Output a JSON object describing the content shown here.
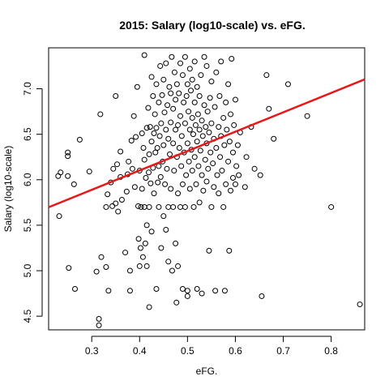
{
  "chart_data": {
    "type": "scatter",
    "title": "2015: Salary (log10-scale) vs. eFG.",
    "xlabel": "eFG.",
    "ylabel": "Salary (log10-scale)",
    "xlim": [
      0.21,
      0.87
    ],
    "ylim": [
      4.35,
      7.45
    ],
    "x_ticks": [
      0.3,
      0.4,
      0.5,
      0.6,
      0.7,
      0.8
    ],
    "x_tick_labels": [
      "0.3",
      "0.4",
      "0.5",
      "0.6",
      "0.7",
      "0.8"
    ],
    "y_ticks": [
      4.5,
      5.0,
      5.5,
      6.0,
      6.5,
      7.0
    ],
    "y_tick_labels": [
      "4.5",
      "5.0",
      "5.5",
      "6.0",
      "6.5",
      "7.0"
    ],
    "grid": false,
    "point_color": "#000000",
    "fit_color": "#e41a1c",
    "fit_line": {
      "intercept": 5.25,
      "slope": 2.13,
      "x_range": [
        0.21,
        0.87
      ]
    },
    "points": [
      [
        0.23,
        6.04
      ],
      [
        0.235,
        6.08
      ],
      [
        0.232,
        5.6
      ],
      [
        0.25,
        6.26
      ],
      [
        0.25,
        6.3
      ],
      [
        0.25,
        6.04
      ],
      [
        0.252,
        5.03
      ],
      [
        0.263,
        5.95
      ],
      [
        0.265,
        4.8
      ],
      [
        0.275,
        6.44
      ],
      [
        0.295,
        6.09
      ],
      [
        0.31,
        4.99
      ],
      [
        0.315,
        4.47
      ],
      [
        0.315,
        4.4
      ],
      [
        0.318,
        6.72
      ],
      [
        0.32,
        5.15
      ],
      [
        0.33,
        5.04
      ],
      [
        0.33,
        5.7
      ],
      [
        0.333,
        5.84
      ],
      [
        0.335,
        4.78
      ],
      [
        0.34,
        5.97
      ],
      [
        0.343,
        5.71
      ],
      [
        0.345,
        6.12
      ],
      [
        0.35,
        5.74
      ],
      [
        0.35,
        6.92
      ],
      [
        0.353,
        6.17
      ],
      [
        0.355,
        5.65
      ],
      [
        0.36,
        6.31
      ],
      [
        0.36,
        6.03
      ],
      [
        0.363,
        5.78
      ],
      [
        0.37,
        5.2
      ],
      [
        0.373,
        5.87
      ],
      [
        0.375,
        6.06
      ],
      [
        0.377,
        6.2
      ],
      [
        0.38,
        4.78
      ],
      [
        0.38,
        5.0
      ],
      [
        0.383,
        6.43
      ],
      [
        0.385,
        6.12
      ],
      [
        0.388,
        6.7
      ],
      [
        0.39,
        5.92
      ],
      [
        0.392,
        6.47
      ],
      [
        0.395,
        7.02
      ],
      [
        0.397,
        5.71
      ],
      [
        0.398,
        5.35
      ],
      [
        0.4,
        6.1
      ],
      [
        0.4,
        5.05
      ],
      [
        0.402,
        5.25
      ],
      [
        0.403,
        5.7
      ],
      [
        0.405,
        6.51
      ],
      [
        0.405,
        5.9
      ],
      [
        0.407,
        5.15
      ],
      [
        0.408,
        6.35
      ],
      [
        0.41,
        7.37
      ],
      [
        0.41,
        5.7
      ],
      [
        0.41,
        6.22
      ],
      [
        0.412,
        5.3
      ],
      [
        0.413,
        6.02
      ],
      [
        0.415,
        6.57
      ],
      [
        0.415,
        5.05
      ],
      [
        0.415,
        5.5
      ],
      [
        0.418,
        6.79
      ],
      [
        0.419,
        6.08
      ],
      [
        0.42,
        6.28
      ],
      [
        0.42,
        5.7
      ],
      [
        0.42,
        4.6
      ],
      [
        0.422,
        6.58
      ],
      [
        0.423,
        5.96
      ],
      [
        0.425,
        7.13
      ],
      [
        0.425,
        6.42
      ],
      [
        0.425,
        5.43
      ],
      [
        0.428,
        6.92
      ],
      [
        0.428,
        6.13
      ],
      [
        0.43,
        6.51
      ],
      [
        0.43,
        5.85
      ],
      [
        0.432,
        6.72
      ],
      [
        0.433,
        6.3
      ],
      [
        0.435,
        7.05
      ],
      [
        0.435,
        6.57
      ],
      [
        0.435,
        4.8
      ],
      [
        0.437,
        6.35
      ],
      [
        0.438,
        5.97
      ],
      [
        0.44,
        6.15
      ],
      [
        0.44,
        6.85
      ],
      [
        0.44,
        5.7
      ],
      [
        0.442,
        6.48
      ],
      [
        0.443,
        7.25
      ],
      [
        0.444,
        6.03
      ],
      [
        0.445,
        6.62
      ],
      [
        0.445,
        5.25
      ],
      [
        0.447,
        6.93
      ],
      [
        0.448,
        6.2
      ],
      [
        0.45,
        7.1
      ],
      [
        0.45,
        5.6
      ],
      [
        0.45,
        6.38
      ],
      [
        0.452,
        6.74
      ],
      [
        0.453,
        5.95
      ],
      [
        0.455,
        6.55
      ],
      [
        0.455,
        5.45
      ],
      [
        0.455,
        7.28
      ],
      [
        0.457,
        6.12
      ],
      [
        0.458,
        6.82
      ],
      [
        0.46,
        6.45
      ],
      [
        0.46,
        5.7
      ],
      [
        0.46,
        5.1
      ],
      [
        0.462,
        7.02
      ],
      [
        0.463,
        6.28
      ],
      [
        0.465,
        6.63
      ],
      [
        0.465,
        5.9
      ],
      [
        0.465,
        6.95
      ],
      [
        0.467,
        7.35
      ],
      [
        0.468,
        5.0
      ],
      [
        0.47,
        6.4
      ],
      [
        0.47,
        6.78
      ],
      [
        0.47,
        5.7
      ],
      [
        0.472,
        6.1
      ],
      [
        0.473,
        7.18
      ],
      [
        0.475,
        6.55
      ],
      [
        0.475,
        5.3
      ],
      [
        0.475,
        6.88
      ],
      [
        0.477,
        4.65
      ],
      [
        0.478,
        6.25
      ],
      [
        0.478,
        7.05
      ],
      [
        0.48,
        5.85
      ],
      [
        0.48,
        6.6
      ],
      [
        0.48,
        5.05
      ],
      [
        0.482,
        6.95
      ],
      [
        0.483,
        6.35
      ],
      [
        0.485,
        7.28
      ],
      [
        0.485,
        5.7
      ],
      [
        0.485,
        6.7
      ],
      [
        0.487,
        6.15
      ],
      [
        0.488,
        6.48
      ],
      [
        0.49,
        7.15
      ],
      [
        0.49,
        5.95
      ],
      [
        0.49,
        4.8
      ],
      [
        0.492,
        6.85
      ],
      [
        0.493,
        6.3
      ],
      [
        0.495,
        6.62
      ],
      [
        0.495,
        7.35
      ],
      [
        0.495,
        5.7
      ],
      [
        0.497,
        6.05
      ],
      [
        0.498,
        6.92
      ],
      [
        0.5,
        6.4
      ],
      [
        0.5,
        7.05
      ],
      [
        0.5,
        4.78
      ],
      [
        0.5,
        4.72
      ],
      [
        0.502,
        6.75
      ],
      [
        0.503,
        6.2
      ],
      [
        0.505,
        6.55
      ],
      [
        0.505,
        5.9
      ],
      [
        0.505,
        7.22
      ],
      [
        0.507,
        6.98
      ],
      [
        0.508,
        6.33
      ],
      [
        0.51,
        6.68
      ],
      [
        0.51,
        6.1
      ],
      [
        0.51,
        7.1
      ],
      [
        0.512,
        6.5
      ],
      [
        0.513,
        5.7
      ],
      [
        0.515,
        6.85
      ],
      [
        0.515,
        6.25
      ],
      [
        0.515,
        7.3
      ],
      [
        0.517,
        6.6
      ],
      [
        0.518,
        5.95
      ],
      [
        0.52,
        6.42
      ],
      [
        0.52,
        7.02
      ],
      [
        0.52,
        4.8
      ],
      [
        0.522,
        6.72
      ],
      [
        0.523,
        6.15
      ],
      [
        0.525,
        6.55
      ],
      [
        0.525,
        5.75
      ],
      [
        0.525,
        6.92
      ],
      [
        0.527,
        6.32
      ],
      [
        0.528,
        7.15
      ],
      [
        0.53,
        6.05
      ],
      [
        0.53,
        6.65
      ],
      [
        0.53,
        4.75
      ],
      [
        0.532,
        6.48
      ],
      [
        0.533,
        5.88
      ],
      [
        0.535,
        6.82
      ],
      [
        0.535,
        7.35
      ],
      [
        0.537,
        6.22
      ],
      [
        0.538,
        6.58
      ],
      [
        0.54,
        5.98
      ],
      [
        0.54,
        6.4
      ],
      [
        0.54,
        7.25
      ],
      [
        0.542,
        6.75
      ],
      [
        0.543,
        6.12
      ],
      [
        0.545,
        6.52
      ],
      [
        0.545,
        5.22
      ],
      [
        0.547,
        6.9
      ],
      [
        0.548,
        6.3
      ],
      [
        0.55,
        5.7
      ],
      [
        0.55,
        6.62
      ],
      [
        0.55,
        7.08
      ],
      [
        0.553,
        6.18
      ],
      [
        0.555,
        6.45
      ],
      [
        0.555,
        5.92
      ],
      [
        0.557,
        6.8
      ],
      [
        0.558,
        4.78
      ],
      [
        0.56,
        6.35
      ],
      [
        0.56,
        7.18
      ],
      [
        0.562,
        6.05
      ],
      [
        0.565,
        6.58
      ],
      [
        0.565,
        5.85
      ],
      [
        0.567,
        6.92
      ],
      [
        0.568,
        6.25
      ],
      [
        0.57,
        6.48
      ],
      [
        0.57,
        7.3
      ],
      [
        0.572,
        6.1
      ],
      [
        0.575,
        6.68
      ],
      [
        0.575,
        5.7
      ],
      [
        0.577,
        6.38
      ],
      [
        0.578,
        4.78
      ],
      [
        0.58,
        6.85
      ],
      [
        0.58,
        5.95
      ],
      [
        0.582,
        6.55
      ],
      [
        0.585,
        6.2
      ],
      [
        0.585,
        7.05
      ],
      [
        0.587,
        5.22
      ],
      [
        0.588,
        6.42
      ],
      [
        0.59,
        6.72
      ],
      [
        0.59,
        5.88
      ],
      [
        0.592,
        7.33
      ],
      [
        0.595,
        6.3
      ],
      [
        0.595,
        6.02
      ],
      [
        0.597,
        6.6
      ],
      [
        0.6,
        6.88
      ],
      [
        0.6,
        5.95
      ],
      [
        0.602,
        6.15
      ],
      [
        0.605,
        6.38
      ],
      [
        0.607,
        6.05
      ],
      [
        0.61,
        6.52
      ],
      [
        0.62,
        5.92
      ],
      [
        0.623,
        6.25
      ],
      [
        0.633,
        6.58
      ],
      [
        0.64,
        6.12
      ],
      [
        0.652,
        6.05
      ],
      [
        0.655,
        4.72
      ],
      [
        0.665,
        7.15
      ],
      [
        0.67,
        6.78
      ],
      [
        0.68,
        6.45
      ],
      [
        0.71,
        7.05
      ],
      [
        0.75,
        6.7
      ],
      [
        0.8,
        5.7
      ],
      [
        0.86,
        4.63
      ]
    ]
  }
}
